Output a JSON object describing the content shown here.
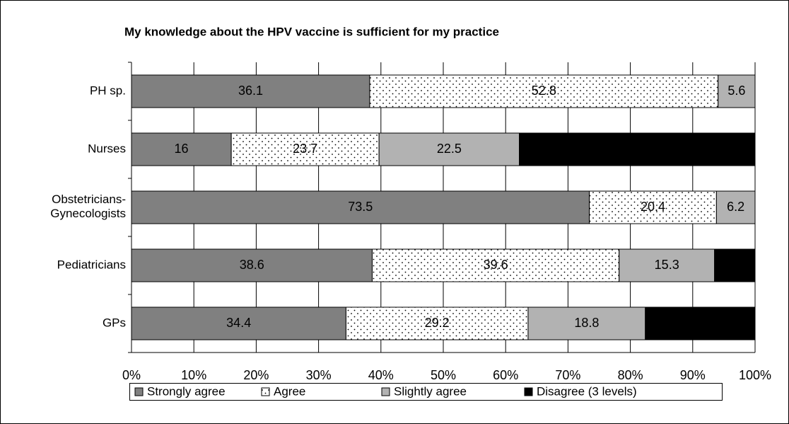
{
  "chart_data": {
    "type": "bar",
    "orientation": "horizontal",
    "stacked": "percent",
    "title": "My knowledge about the HPV vaccine is sufficient for my practice",
    "categories": [
      "PH sp.",
      "Nurses",
      "Obstetricians-\nGynecologists",
      "Pediatricians",
      "GPs"
    ],
    "series": [
      {
        "name": "Strongly agree",
        "color": "#808080",
        "label_color": "#000000",
        "values": [
          36.1,
          16,
          73.5,
          38.6,
          34.4
        ]
      },
      {
        "name": "Agree",
        "color": "#ffffff",
        "pattern": "dots",
        "label_color": "#000000",
        "values": [
          52.8,
          23.7,
          20.4,
          39.6,
          29.2
        ]
      },
      {
        "name": "Slightly agree",
        "color": "#b2b2b2",
        "label_color": "#000000",
        "values": [
          5.6,
          22.5,
          6.2,
          15.3,
          18.8
        ]
      },
      {
        "name": "Disagree (3 levels)",
        "color": "#000000",
        "label_color": "#ffffff",
        "values": [
          null,
          37.8,
          null,
          6.5,
          17.6
        ]
      }
    ],
    "xlim": [
      0,
      100
    ],
    "xticks": [
      {
        "value": 0,
        "label": "0%"
      },
      {
        "value": 10,
        "label": "10%"
      },
      {
        "value": 20,
        "label": "20%"
      },
      {
        "value": 30,
        "label": "30%"
      },
      {
        "value": 40,
        "label": "40%"
      },
      {
        "value": 50,
        "label": "50%"
      },
      {
        "value": 60,
        "label": "60%"
      },
      {
        "value": 70,
        "label": "70%"
      },
      {
        "value": 80,
        "label": "80%"
      },
      {
        "value": 90,
        "label": "90%"
      },
      {
        "value": 100,
        "label": "100%"
      }
    ],
    "grid": true,
    "legend": "bottom"
  }
}
